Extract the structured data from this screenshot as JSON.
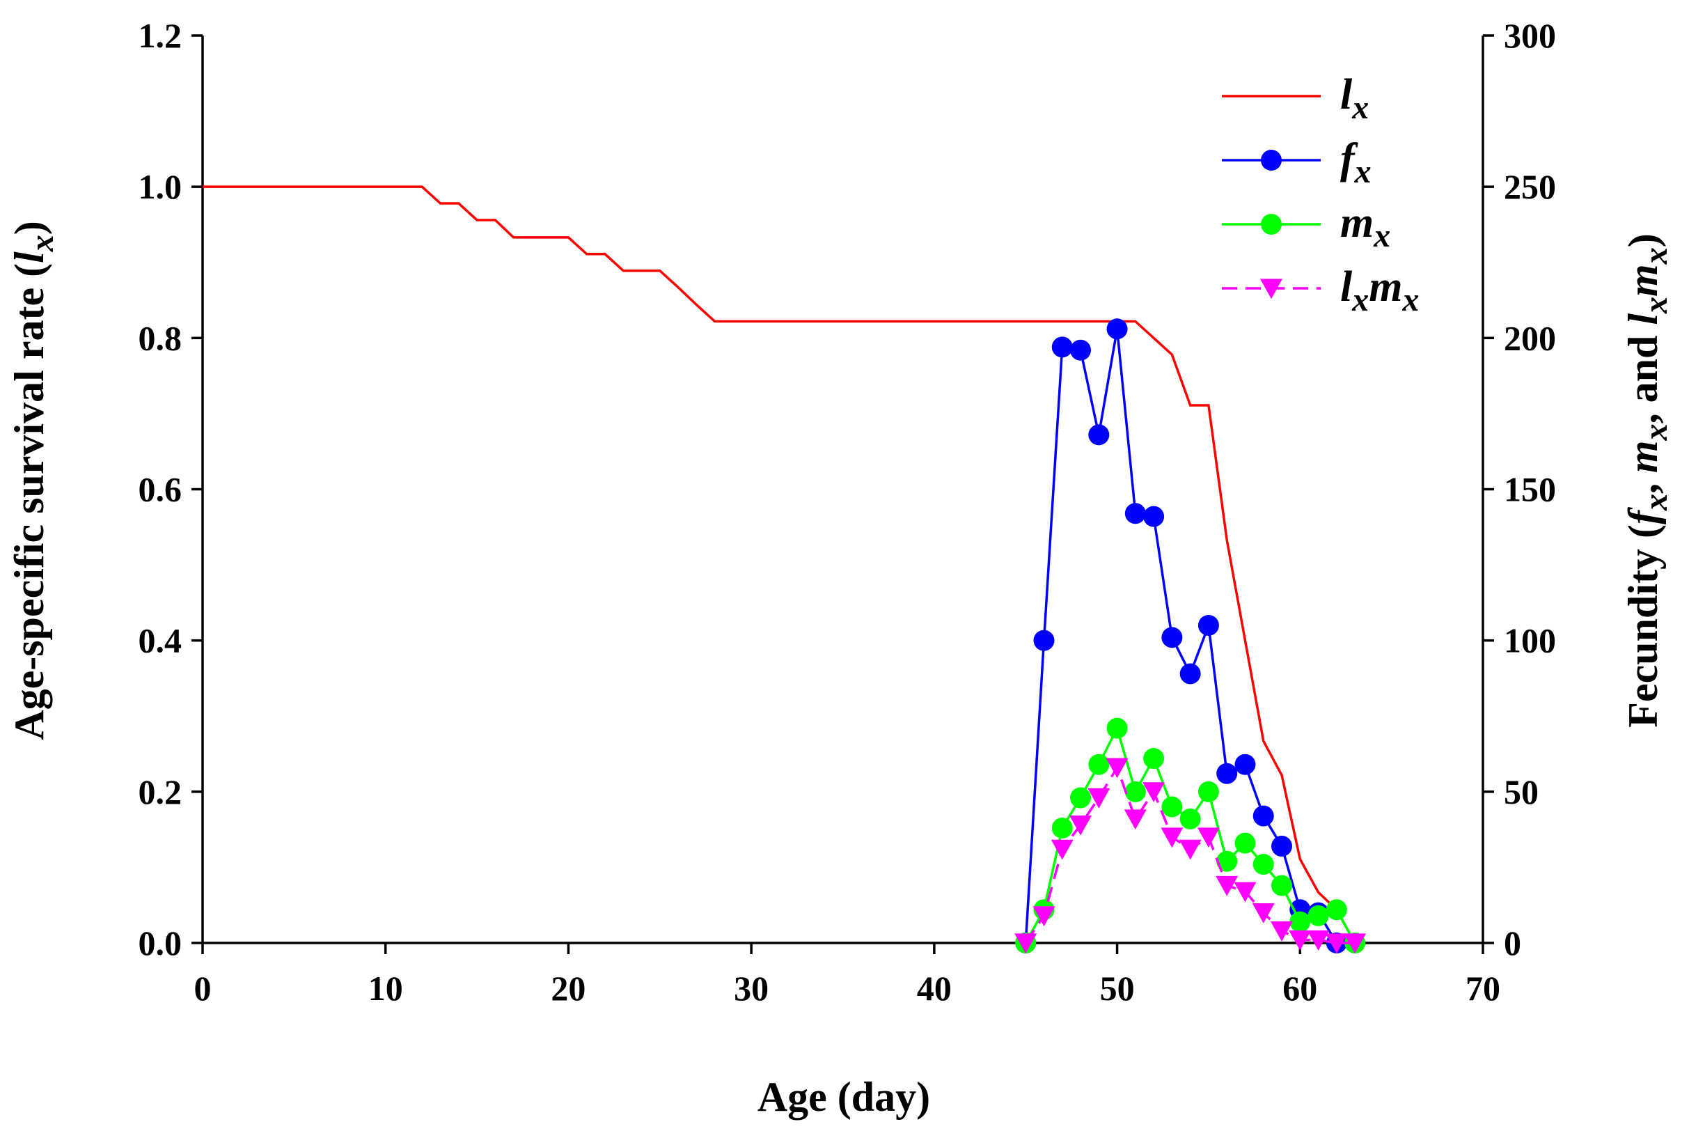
{
  "chart_data": {
    "type": "line",
    "xlabel": "Age (day)",
    "ylabel_left": {
      "text": "Age-specific survival rate (",
      "var": "l",
      "sub": "x",
      "close": ")"
    },
    "ylabel_right": {
      "pre": "Fecundity (",
      "f": "f",
      "fsub": "x",
      "comma1": ", ",
      "m": "m",
      "msub": "x",
      "comma2": ", and ",
      "l": "l",
      "lsub": "x",
      "m2": "m",
      "m2sub": "x",
      "close": ")"
    },
    "xlim": [
      0,
      70
    ],
    "xticks": [
      0,
      10,
      20,
      30,
      40,
      50,
      60,
      70
    ],
    "ylim_left": [
      0,
      1.2
    ],
    "yticks_left": [
      "0.0",
      "0.2",
      "0.4",
      "0.6",
      "0.8",
      "1.0",
      "1.2"
    ],
    "ylim_right": [
      0,
      300
    ],
    "yticks_right": [
      "0",
      "50",
      "100",
      "150",
      "200",
      "250",
      "300"
    ],
    "series": [
      {
        "name": "lx",
        "label_main": "l",
        "label_sub": "x",
        "axis": "left",
        "color": "#ff0000",
        "marker": "none",
        "dash": false,
        "points": [
          [
            0,
            1.0
          ],
          [
            12,
            1.0
          ],
          [
            13,
            0.978
          ],
          [
            14,
            0.978
          ],
          [
            15,
            0.956
          ],
          [
            16,
            0.956
          ],
          [
            17,
            0.933
          ],
          [
            20,
            0.933
          ],
          [
            21,
            0.911
          ],
          [
            22,
            0.911
          ],
          [
            23,
            0.889
          ],
          [
            25,
            0.889
          ],
          [
            26,
            0.867
          ],
          [
            27,
            0.844
          ],
          [
            28,
            0.822
          ],
          [
            51,
            0.822
          ],
          [
            52,
            0.8
          ],
          [
            53,
            0.778
          ],
          [
            54,
            0.711
          ],
          [
            55,
            0.711
          ],
          [
            56,
            0.533
          ],
          [
            57,
            0.4
          ],
          [
            58,
            0.267
          ],
          [
            59,
            0.222
          ],
          [
            60,
            0.111
          ],
          [
            61,
            0.067
          ],
          [
            62,
            0.044
          ],
          [
            63,
            0.0
          ]
        ]
      },
      {
        "name": "fx",
        "label_main": "f",
        "label_sub": "x",
        "axis": "right",
        "color": "#0000ff",
        "marker": "circle",
        "dash": false,
        "points": [
          [
            45,
            0
          ],
          [
            46,
            100
          ],
          [
            47,
            197
          ],
          [
            48,
            196
          ],
          [
            49,
            168
          ],
          [
            50,
            203
          ],
          [
            51,
            142
          ],
          [
            52,
            141
          ],
          [
            53,
            101
          ],
          [
            54,
            89
          ],
          [
            55,
            105
          ],
          [
            56,
            56
          ],
          [
            57,
            59
          ],
          [
            58,
            42
          ],
          [
            59,
            32
          ],
          [
            60,
            11
          ],
          [
            61,
            10
          ],
          [
            62,
            0
          ]
        ]
      },
      {
        "name": "mx",
        "label_main": "m",
        "label_sub": "x",
        "axis": "right",
        "color": "#00ff00",
        "marker": "circle",
        "dash": false,
        "points": [
          [
            45,
            0
          ],
          [
            46,
            11
          ],
          [
            47,
            38
          ],
          [
            48,
            48
          ],
          [
            49,
            59
          ],
          [
            50,
            71
          ],
          [
            51,
            50
          ],
          [
            52,
            61
          ],
          [
            53,
            45
          ],
          [
            54,
            41
          ],
          [
            55,
            50
          ],
          [
            56,
            27
          ],
          [
            57,
            33
          ],
          [
            58,
            26
          ],
          [
            59,
            19
          ],
          [
            60,
            7
          ],
          [
            61,
            9
          ],
          [
            62,
            11
          ],
          [
            63,
            0
          ]
        ]
      },
      {
        "name": "lxmx",
        "label_main": "l",
        "label_sub": "x",
        "label_main2": "m",
        "label_sub2": "x",
        "axis": "right",
        "color": "#ff00ff",
        "marker": "triangle-down",
        "dash": true,
        "points": [
          [
            45,
            0
          ],
          [
            46,
            9
          ],
          [
            47,
            31
          ],
          [
            48,
            39
          ],
          [
            49,
            48
          ],
          [
            50,
            58
          ],
          [
            51,
            41
          ],
          [
            52,
            50
          ],
          [
            53,
            35
          ],
          [
            54,
            31
          ],
          [
            55,
            35
          ],
          [
            56,
            19
          ],
          [
            57,
            17
          ],
          [
            58,
            10
          ],
          [
            59,
            4
          ],
          [
            60,
            1
          ],
          [
            61,
            1
          ],
          [
            62,
            0
          ],
          [
            63,
            0
          ]
        ]
      }
    ],
    "legend_position": "top-right"
  }
}
